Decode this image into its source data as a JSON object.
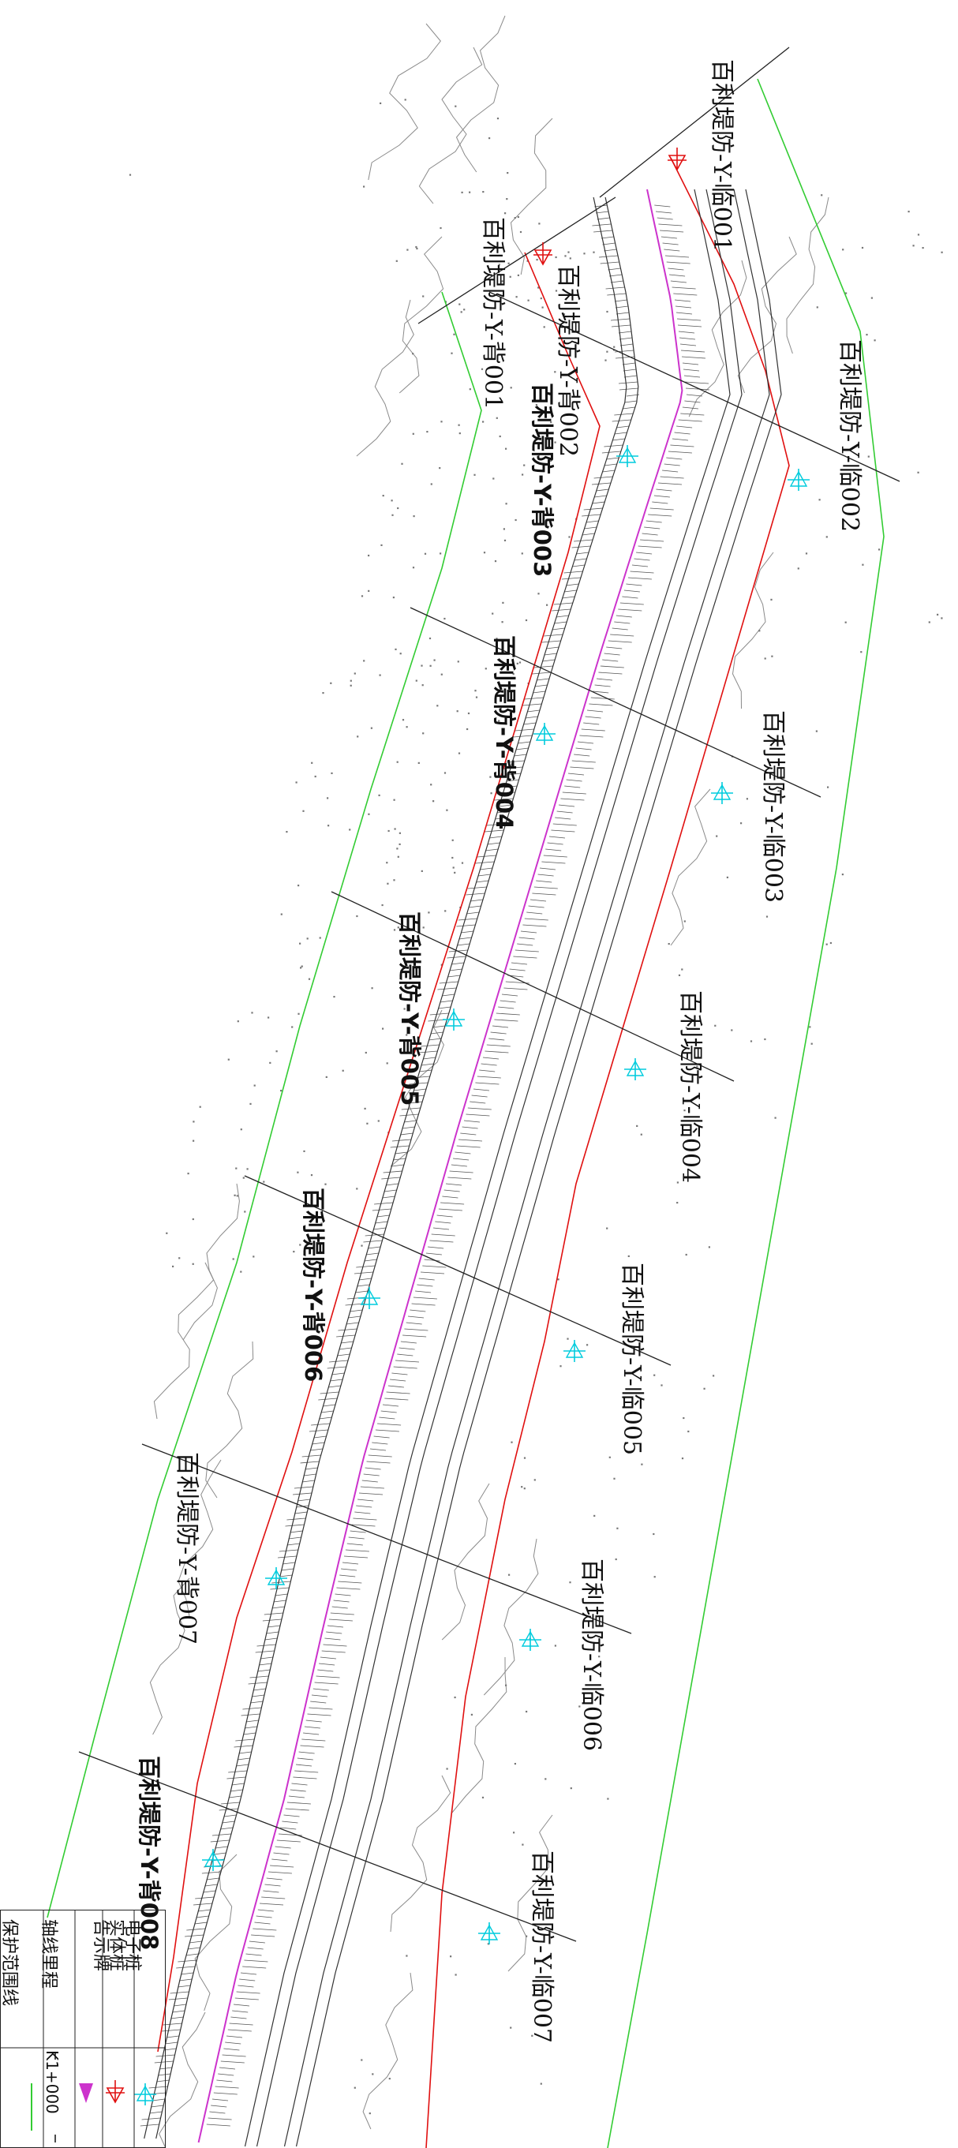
{
  "map": {
    "colors": {
      "protection_line": "#33cc33",
      "boundary_line": "#e01010",
      "axis_line": "#cc33cc",
      "contour": "#888888",
      "dike_line": "#333333",
      "signboard_marker": "#00ccdd",
      "physical_pile": "#e01010",
      "section_line": "#222222"
    },
    "back_sections": [
      {
        "label": "百利堤防-Y-背001",
        "bold": false
      },
      {
        "label": "百利堤防-Y-背002",
        "bold": false
      },
      {
        "label": "百利堤防-Y-背003",
        "bold": true
      },
      {
        "label": "百利堤防-Y-背004",
        "bold": true
      },
      {
        "label": "百利堤防-Y-背005",
        "bold": true
      },
      {
        "label": "百利堤防-Y-背006",
        "bold": true
      },
      {
        "label": "百利堤防-Y-背007",
        "bold": false
      },
      {
        "label": "百利堤防-Y-背008",
        "bold": true
      }
    ],
    "front_sections": [
      {
        "label": "百利堤防-Y-临001"
      },
      {
        "label": "百利堤防-Y-临002"
      },
      {
        "label": "百利堤防-Y-临003"
      },
      {
        "label": "百利堤防-Y-临004"
      },
      {
        "label": "百利堤防-Y-临005"
      },
      {
        "label": "百利堤防-Y-临006"
      },
      {
        "label": "百利堤防-Y-临007"
      }
    ]
  },
  "legend": {
    "items": [
      {
        "label": "电子桩",
        "symbol": "electronic-pile-icon"
      },
      {
        "label": "实体桩",
        "symbol": "physical-pile-icon"
      },
      {
        "label": "告示牌",
        "symbol": "signboard-icon"
      },
      {
        "label": "轴线里程",
        "symbol": "axis-mileage-icon"
      },
      {
        "label": "保护范围线",
        "symbol": "protection-line-icon"
      }
    ],
    "mileage_value": "K1+000"
  }
}
